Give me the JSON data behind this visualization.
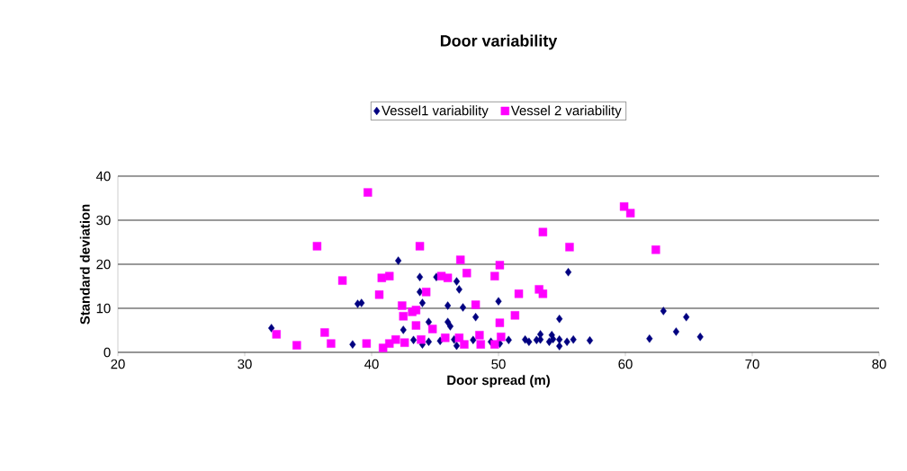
{
  "chart_data": {
    "type": "scatter",
    "title": "Door variability",
    "xlabel": "Door spread (m)",
    "ylabel": "Standard deviation",
    "xlim": [
      20,
      80
    ],
    "xticks": [
      20,
      30,
      40,
      50,
      60,
      70,
      80
    ],
    "ylim": [
      0,
      40
    ],
    "yticks": [
      0,
      10,
      20,
      30,
      40
    ],
    "grid": "y",
    "legend": "top",
    "series": [
      {
        "name": "Vessel1  variability",
        "color": "#000080",
        "marker": "diamond",
        "x": [
          32.1,
          38.9,
          38.5,
          42.1,
          43.8,
          45.1,
          46.7,
          46.9,
          43.8,
          44.0,
          39.2,
          46.0,
          47.2,
          50.0,
          48.2,
          42.5,
          44.5,
          46.0,
          46.2,
          43.3,
          44.0,
          44.5,
          45.4,
          46.5,
          48.0,
          49.4,
          50.1,
          50.8,
          52.1,
          52.4,
          53.0,
          53.3,
          54.0,
          54.3,
          54.8,
          55.4,
          55.9,
          57.2,
          53.3,
          54.2,
          54.8,
          55.5,
          54.8,
          46.7,
          61.9,
          63.0,
          64.0,
          64.8,
          65.9
        ],
        "values": [
          5.5,
          11,
          1.8,
          20.8,
          17.1,
          17.1,
          16.1,
          14.3,
          13.7,
          11.2,
          11.2,
          10.6,
          10.2,
          11.6,
          8.0,
          5.1,
          6.9,
          6.9,
          5.9,
          2.8,
          1.8,
          2.4,
          2.6,
          2.9,
          2.8,
          2.4,
          2.0,
          2.8,
          2.9,
          2.4,
          2.8,
          2.9,
          2.4,
          3.0,
          2.9,
          2.4,
          2.9,
          2.7,
          4.1,
          3.9,
          7.6,
          18.2,
          1.4,
          1.5,
          3.1,
          9.4,
          4.7,
          8.0,
          3.5
        ]
      },
      {
        "name": "Vessel 2  variability",
        "color": "#ff00ff",
        "marker": "square",
        "x": [
          39.7,
          35.7,
          37.7,
          40.8,
          41.4,
          40.6,
          32.5,
          34.1,
          36.3,
          36.8,
          39.6,
          40.9,
          43.8,
          42.4,
          42.5,
          43.2,
          41.4,
          41.9,
          42.6,
          44.3,
          43.5,
          44.8,
          43.5,
          43.9,
          45.5,
          46.0,
          47.0,
          47.5,
          48.2,
          49.7,
          50.1,
          51.6,
          51.3,
          50.1,
          45.8,
          46.9,
          47.3,
          48.5,
          48.6,
          49.7,
          50.2,
          53.5,
          53.2,
          53.5,
          55.6,
          59.9,
          60.4,
          62.4
        ],
        "values": [
          36.3,
          24.1,
          16.3,
          16.9,
          17.3,
          13.1,
          4.1,
          1.6,
          4.5,
          2.0,
          2.0,
          1.0,
          24.1,
          10.6,
          8.2,
          9.2,
          2.0,
          2.9,
          2.2,
          13.7,
          9.6,
          5.3,
          6.1,
          2.9,
          17.3,
          16.9,
          21.0,
          18.0,
          10.8,
          17.3,
          19.8,
          13.3,
          8.4,
          6.7,
          3.3,
          3.3,
          1.8,
          3.9,
          1.8,
          1.8,
          3.5,
          27.3,
          14.3,
          13.3,
          23.9,
          33.1,
          31.6,
          23.3
        ]
      }
    ]
  }
}
